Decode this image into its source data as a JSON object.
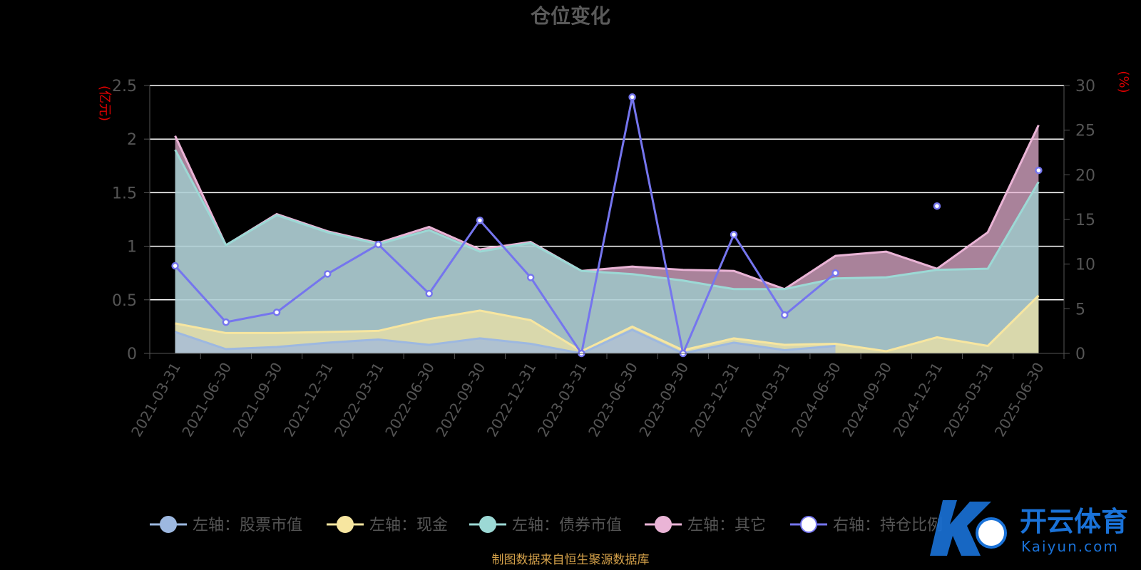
{
  "title": "仓位变化",
  "units": {
    "left": "(亿元)",
    "right": "(%)"
  },
  "source_note": "制图数据来自恒生聚源数据库",
  "watermark": {
    "name": "开云体育",
    "url": "Kaiyun.com"
  },
  "colors": {
    "stock": "#9db8e0",
    "cash": "#f7e6a0",
    "bond": "#9cd9d5",
    "other": "#eab4d6",
    "ratio": "#7575ee",
    "grid": "#ffffff",
    "axis": "#555555"
  },
  "chart_data": {
    "type": "area",
    "title": "仓位变化",
    "x": [
      "2021-03-31",
      "2021-06-30",
      "2021-09-30",
      "2021-12-31",
      "2022-03-31",
      "2022-06-30",
      "2022-09-30",
      "2022-12-31",
      "2023-03-31",
      "2023-06-30",
      "2023-09-30",
      "2023-12-31",
      "2024-03-31",
      "2024-06-30",
      "2024-09-30",
      "2024-12-31",
      "2025-03-31",
      "2025-06-30"
    ],
    "y_left": {
      "unit": "亿元",
      "ylim": [
        0,
        2.5
      ],
      "ticks": [
        "0",
        "0.5",
        "1",
        "1.5",
        "2",
        "2.5"
      ]
    },
    "y_right": {
      "unit": "%",
      "ylim": [
        0,
        30
      ],
      "ticks": [
        "0",
        "5",
        "10",
        "15",
        "20",
        "25",
        "30"
      ]
    },
    "grid": true,
    "legend_position": "bottom",
    "series": [
      {
        "name": "左轴：股票市值",
        "key": "stock",
        "axis": "left",
        "values": [
          0.2,
          0.04,
          0.06,
          0.1,
          0.13,
          0.08,
          0.14,
          0.09,
          0.0,
          0.22,
          0.0,
          0.1,
          0.03,
          0.07,
          null,
          0.15,
          null,
          null
        ]
      },
      {
        "name": "左轴：现金",
        "key": "cash",
        "axis": "left",
        "values": [
          0.28,
          0.19,
          0.19,
          0.2,
          0.21,
          0.32,
          0.4,
          0.31,
          0.02,
          0.25,
          0.03,
          0.14,
          0.08,
          0.09,
          0.02,
          0.15,
          0.07,
          0.54
        ]
      },
      {
        "name": "左轴：债券市值",
        "key": "bond",
        "axis": "left",
        "values": [
          1.9,
          1.01,
          1.29,
          1.13,
          1.02,
          1.15,
          0.95,
          1.03,
          0.77,
          0.74,
          0.68,
          0.6,
          0.6,
          0.7,
          0.71,
          0.78,
          0.79,
          1.6
        ]
      },
      {
        "name": "左轴：其它",
        "key": "other",
        "axis": "left",
        "values": [
          2.03,
          1.01,
          1.3,
          1.14,
          1.03,
          1.18,
          0.97,
          1.04,
          0.77,
          0.81,
          0.78,
          0.77,
          0.6,
          0.91,
          0.95,
          0.79,
          1.13,
          2.13
        ]
      },
      {
        "name": "右轴：持仓比例",
        "key": "ratio",
        "axis": "right",
        "values": [
          9.8,
          3.5,
          4.6,
          8.9,
          12.2,
          6.7,
          14.9,
          8.5,
          0.0,
          28.7,
          0.0,
          13.3,
          4.3,
          9.0,
          null,
          16.5,
          null,
          20.5
        ]
      }
    ]
  }
}
